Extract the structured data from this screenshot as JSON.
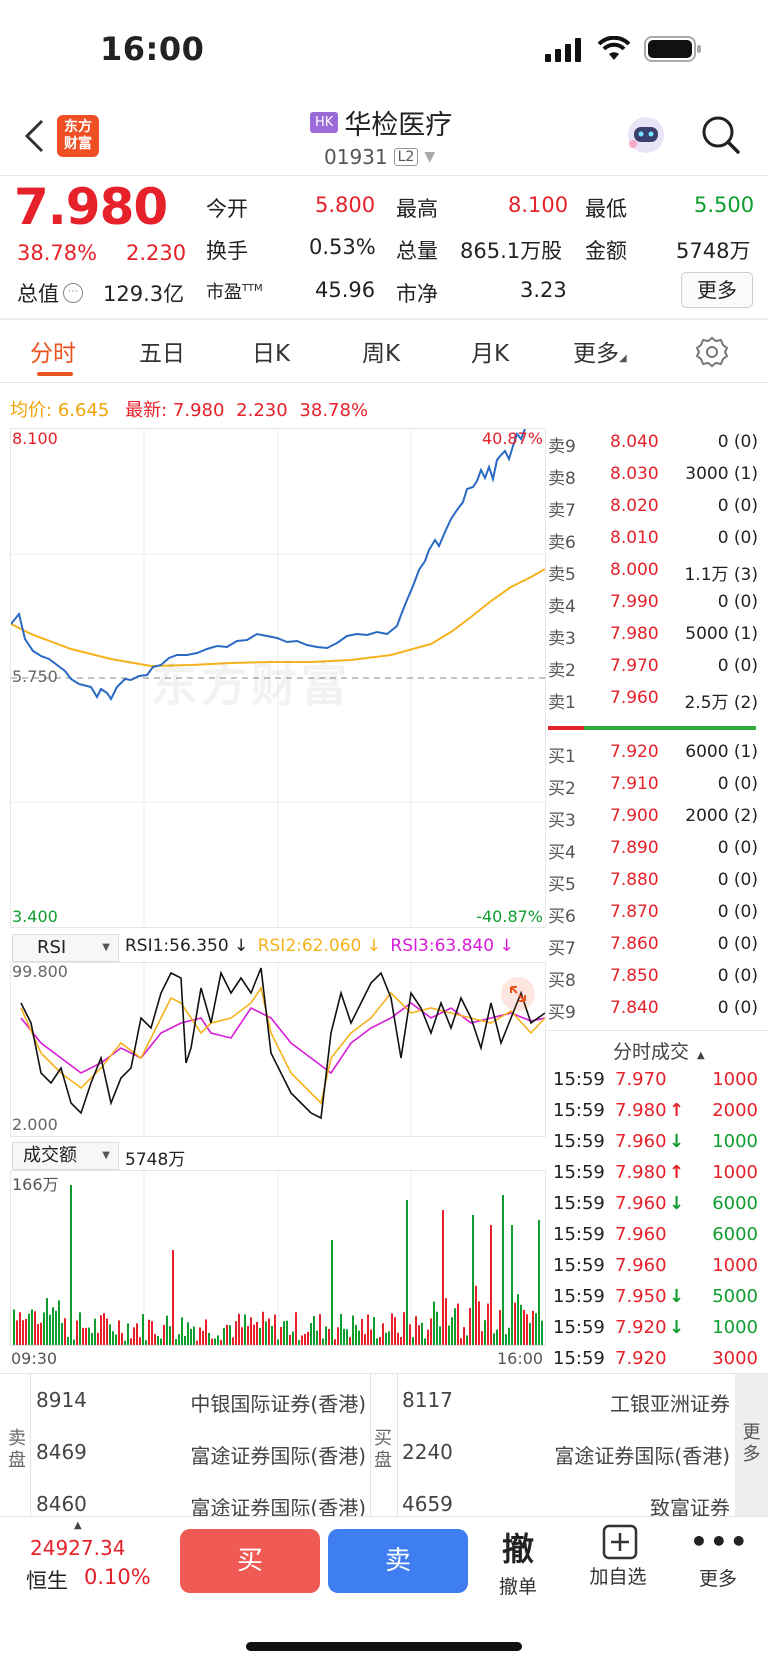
{
  "status": {
    "time": "16:00"
  },
  "header": {
    "badge": "HK",
    "name": "华检医疗",
    "code": "01931",
    "level": "L2",
    "logo_line1": "东方",
    "logo_line2": "财富"
  },
  "quote": {
    "price": "7.980",
    "change_pct": "38.78%",
    "change": "2.230",
    "open_label": "今开",
    "open": "5.800",
    "high_label": "最高",
    "high": "8.100",
    "low_label": "最低",
    "low": "5.500",
    "turnover_rate_label": "换手",
    "turnover_rate": "0.53%",
    "volume_label": "总量",
    "volume": "865.1万股",
    "amount_label": "金额",
    "amount": "5748万",
    "mktcap_label": "总值",
    "mktcap": "129.3亿",
    "pe_label": "市盈",
    "pe_sup": "TTM",
    "pe": "45.96",
    "pb_label": "市净",
    "pb": "3.23",
    "more_button": "更多"
  },
  "tabs": [
    "分时",
    "五日",
    "日K",
    "周K",
    "月K",
    "更多"
  ],
  "info_line": {
    "avg_label": "均价:",
    "avg": "6.645",
    "latest_label": "最新:",
    "latest": "7.980",
    "change": "2.230",
    "change_pct": "38.78%"
  },
  "chart": {
    "y_max": "8.100",
    "y_mid": "5.750",
    "y_min": "3.400",
    "pct_max": "40.87%",
    "pct_min": "-40.87%",
    "time_start": "09:30",
    "time_end": "16:00",
    "watermark": "东方财富"
  },
  "rsi": {
    "selector": "RSI",
    "rsi1": "RSI1:56.350 ↓",
    "rsi2": "RSI2:62.060 ↓",
    "rsi3": "RSI3:63.840 ↓",
    "max": "99.800",
    "min": "2.000"
  },
  "volume": {
    "selector": "成交额",
    "value": "5748万",
    "max": "166万"
  },
  "orderbook": {
    "asks": [
      {
        "label": "卖9",
        "price": "8.040",
        "qty": "0 (0)"
      },
      {
        "label": "卖8",
        "price": "8.030",
        "qty": "3000 (1)"
      },
      {
        "label": "卖7",
        "price": "8.020",
        "qty": "0 (0)"
      },
      {
        "label": "卖6",
        "price": "8.010",
        "qty": "0 (0)"
      },
      {
        "label": "卖5",
        "price": "8.000",
        "qty": "1.1万 (3)"
      },
      {
        "label": "卖4",
        "price": "7.990",
        "qty": "0 (0)"
      },
      {
        "label": "卖3",
        "price": "7.980",
        "qty": "5000 (1)"
      },
      {
        "label": "卖2",
        "price": "7.970",
        "qty": "0 (0)"
      },
      {
        "label": "卖1",
        "price": "7.960",
        "qty": "2.5万 (2)"
      }
    ],
    "bids": [
      {
        "label": "买1",
        "price": "7.920",
        "qty": "6000 (1)"
      },
      {
        "label": "买2",
        "price": "7.910",
        "qty": "0 (0)"
      },
      {
        "label": "买3",
        "price": "7.900",
        "qty": "2000 (2)"
      },
      {
        "label": "买4",
        "price": "7.890",
        "qty": "0 (0)"
      },
      {
        "label": "买5",
        "price": "7.880",
        "qty": "0 (0)"
      },
      {
        "label": "买6",
        "price": "7.870",
        "qty": "0 (0)"
      },
      {
        "label": "买7",
        "price": "7.860",
        "qty": "0 (0)"
      },
      {
        "label": "买8",
        "price": "7.850",
        "qty": "0 (0)"
      },
      {
        "label": "买9",
        "price": "7.840",
        "qty": "0 (0)"
      }
    ]
  },
  "trades": {
    "title": "分时成交",
    "rows": [
      {
        "time": "15:59",
        "price": "7.970",
        "arrow": "",
        "qty": "1000",
        "dir": "up"
      },
      {
        "time": "15:59",
        "price": "7.980",
        "arrow": "↑",
        "qty": "2000",
        "dir": "up"
      },
      {
        "time": "15:59",
        "price": "7.960",
        "arrow": "↓",
        "qty": "1000",
        "dir": "down"
      },
      {
        "time": "15:59",
        "price": "7.980",
        "arrow": "↑",
        "qty": "1000",
        "dir": "up"
      },
      {
        "time": "15:59",
        "price": "7.960",
        "arrow": "↓",
        "qty": "6000",
        "dir": "down"
      },
      {
        "time": "15:59",
        "price": "7.960",
        "arrow": "",
        "qty": "6000",
        "dir": "down"
      },
      {
        "time": "15:59",
        "price": "7.960",
        "arrow": "",
        "qty": "1000",
        "dir": "up"
      },
      {
        "time": "15:59",
        "price": "7.950",
        "arrow": "↓",
        "qty": "5000",
        "dir": "down"
      },
      {
        "time": "15:59",
        "price": "7.920",
        "arrow": "↓",
        "qty": "1000",
        "dir": "down"
      },
      {
        "time": "15:59",
        "price": "7.920",
        "arrow": "",
        "qty": "3000",
        "dir": "up"
      }
    ]
  },
  "brokers": {
    "sell_label_1": "卖",
    "sell_label_2": "盘",
    "buy_label_1": "买",
    "buy_label_2": "盘",
    "more_1": "更",
    "more_2": "多",
    "sell": [
      {
        "id": "8914",
        "name": "中银国际证券(香港)"
      },
      {
        "id": "8469",
        "name": "富途证券国际(香港)"
      },
      {
        "id": "8460",
        "name": "富途证券国际(香港)"
      }
    ],
    "buy": [
      {
        "id": "8117",
        "name": "工银亚洲证券"
      },
      {
        "id": "2240",
        "name": "富途证券国际(香港)"
      },
      {
        "id": "4659",
        "name": "致富证券"
      }
    ]
  },
  "bottom": {
    "index_value": "24927.34",
    "index_name": "恒生",
    "index_pct": "0.10%",
    "buy": "买",
    "sell": "卖",
    "cancel_glyph": "撤",
    "cancel": "撤单",
    "add_watch": "加自选",
    "more": "更多"
  },
  "colors": {
    "up": "#e6212a",
    "down": "#0f9d2f",
    "accent": "#e8541d",
    "price_line": "#2a6ac2",
    "avg_line": "#f5b21c",
    "rsi3": "#d81bd8",
    "buy_btn": "#ef5a55",
    "sell_btn": "#3f7ef1"
  }
}
